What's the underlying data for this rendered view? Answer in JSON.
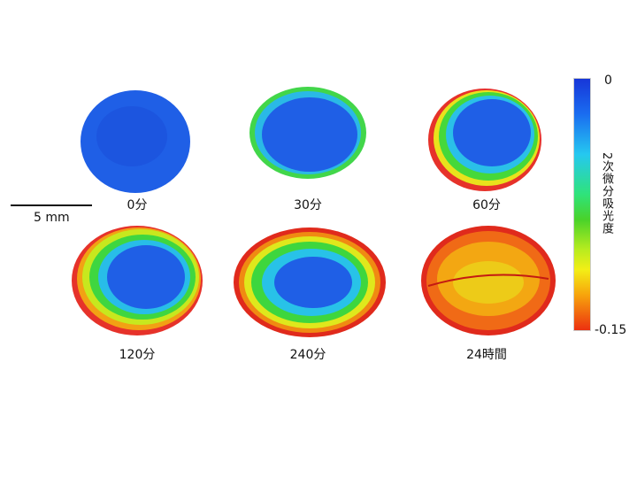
{
  "panels": [
    {
      "label": "0分"
    },
    {
      "label": "30分"
    },
    {
      "label": "60分"
    },
    {
      "label": "120分"
    },
    {
      "label": "240分"
    },
    {
      "label": "24時間"
    }
  ],
  "scalebar": {
    "label": "5 mm"
  },
  "colorbar": {
    "max_label": "0",
    "min_label": "-0.15",
    "title": "2次微分吸光度"
  },
  "colors": {
    "blue": "#1a5ae8",
    "cyan": "#28c8e8",
    "green": "#3ed83a",
    "yellow": "#e6ec1a",
    "orange": "#f39a10",
    "red": "#e2281a"
  }
}
